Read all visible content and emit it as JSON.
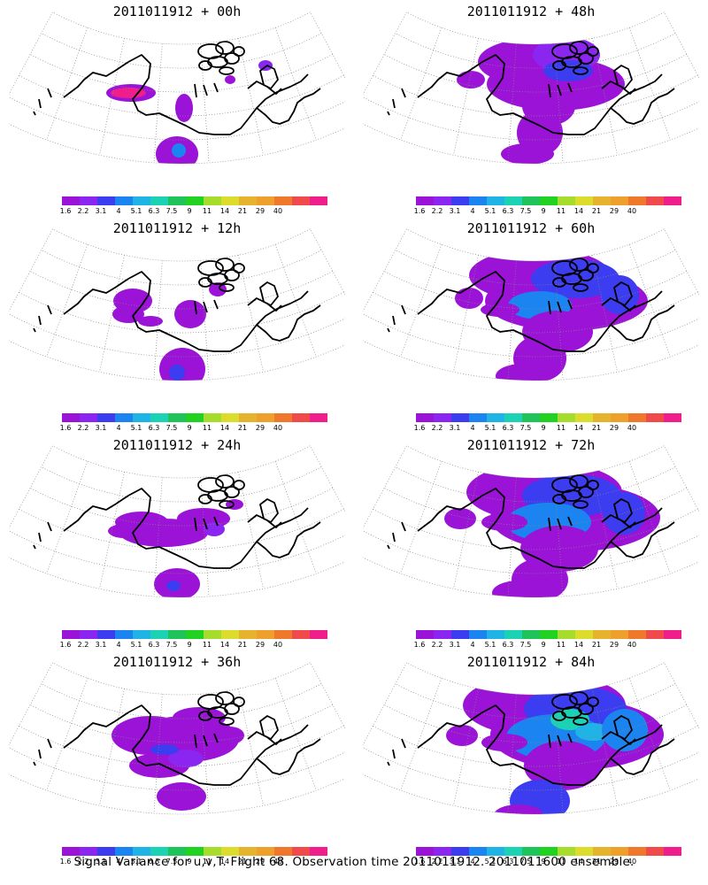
{
  "caption": "Signal Variance for u,v,T. Flight 68. Observation time 2011011912. 2011011600 ensemble.",
  "colorbar": {
    "colors": [
      "#9b13d6",
      "#8a26f0",
      "#3c3cf0",
      "#1c84f0",
      "#20b4e6",
      "#1cd2b4",
      "#1ec35a",
      "#22d222",
      "#a6dc2c",
      "#dcdc2c",
      "#e6b42c",
      "#eea02c",
      "#f0782c",
      "#f04a4a",
      "#f01e8c"
    ],
    "ticks": [
      "1.6",
      "2.2",
      "3.1",
      "4",
      "5.1",
      "6.3",
      "7.5",
      "9",
      "11",
      "14",
      "21",
      "29",
      "40"
    ]
  },
  "panels": [
    {
      "title": "2011011912 + 00h",
      "intensity": 0
    },
    {
      "title": "2011011912 + 48h",
      "intensity": 4
    },
    {
      "title": "2011011912 + 12h",
      "intensity": 1
    },
    {
      "title": "2011011912 + 60h",
      "intensity": 5
    },
    {
      "title": "2011011912 + 24h",
      "intensity": 2
    },
    {
      "title": "2011011912 + 72h",
      "intensity": 6
    },
    {
      "title": "2011011912 + 36h",
      "intensity": 3
    },
    {
      "title": "2011011912 + 84h",
      "intensity": 7
    }
  ]
}
